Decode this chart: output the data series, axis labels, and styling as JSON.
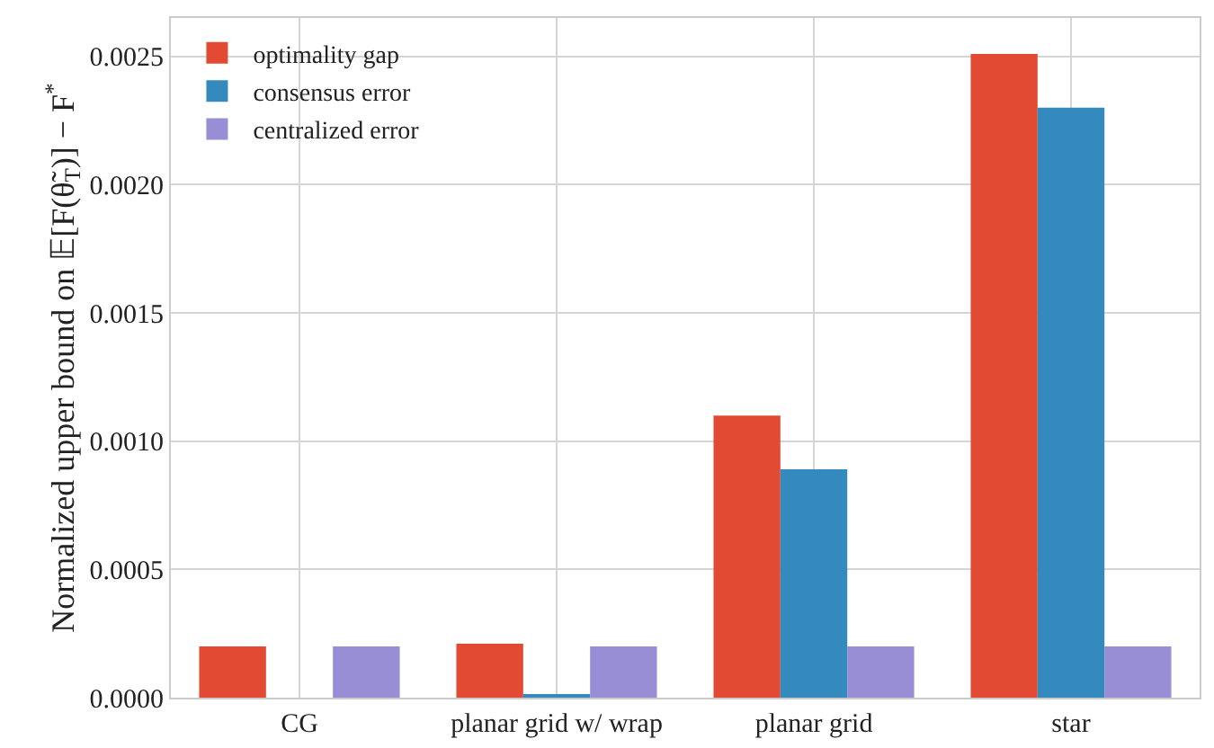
{
  "chart_data": {
    "type": "bar",
    "ylabel": "Normalized upper bound on 𝔼[F(θ̃$_{T}$)] − F$^{*}$",
    "categories": [
      "CG",
      "planar grid w/ wrap",
      "planar grid",
      "star"
    ],
    "series": [
      {
        "name": "optimality gap",
        "color": "#e24a33",
        "values": [
          0.0002,
          0.00021,
          0.0011,
          0.00251
        ]
      },
      {
        "name": "consensus error",
        "color": "#348abd",
        "values": [
          0,
          1e-05,
          0.00089,
          0.0023
        ]
      },
      {
        "name": "centralized error",
        "color": "#988ed5",
        "values": [
          0.0002,
          0.0002,
          0.0002,
          0.0002
        ]
      }
    ],
    "ylim": [
      0,
      0.00265
    ],
    "yticks": [
      {
        "value": 0,
        "label": "0.0000"
      },
      {
        "value": 0.0005,
        "label": "0.0005"
      },
      {
        "value": 0.001,
        "label": "0.0010"
      },
      {
        "value": 0.0015,
        "label": "0.0015"
      },
      {
        "value": 0.002,
        "label": "0.0020"
      },
      {
        "value": 0.0025,
        "label": "0.0025"
      }
    ],
    "grid": true,
    "legend": "top left"
  }
}
